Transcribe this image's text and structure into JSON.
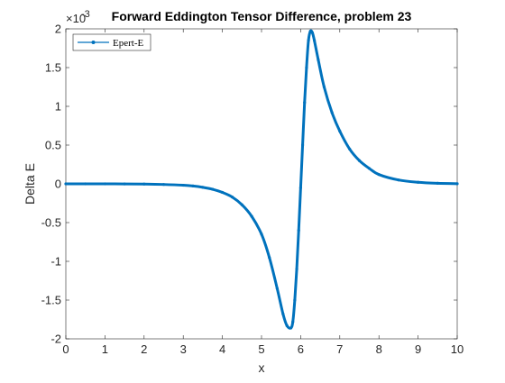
{
  "chart_data": {
    "type": "line",
    "title": "Forward Eddington Tensor Difference, problem 23",
    "xlabel": "x",
    "ylabel": "Delta E",
    "y_exponent_label": "×10",
    "y_exponent_power": "-3",
    "xlim": [
      0,
      10
    ],
    "ylim": [
      -0.002,
      0.002
    ],
    "x_ticks": [
      0,
      1,
      2,
      3,
      4,
      5,
      6,
      7,
      8,
      9,
      10
    ],
    "x_tick_labels": [
      "0",
      "1",
      "2",
      "3",
      "4",
      "5",
      "6",
      "7",
      "8",
      "9",
      "10"
    ],
    "y_ticks": [
      -0.002,
      -0.0015,
      -0.001,
      -0.0005,
      0,
      0.0005,
      0.001,
      0.0015,
      0.002
    ],
    "y_tick_labels": [
      "-2",
      "-1.5",
      "-1",
      "-0.5",
      "0",
      "0.5",
      "1",
      "1.5",
      "2"
    ],
    "grid": false,
    "legend_position": "top-left",
    "series": [
      {
        "name": "Epert-E",
        "color": "#0072BD",
        "marker": "dot",
        "x": [
          0,
          0.5,
          1,
          1.5,
          2,
          2.5,
          3,
          3.25,
          3.5,
          3.75,
          4,
          4.25,
          4.5,
          4.75,
          5,
          5.2,
          5.4,
          5.55,
          5.65,
          5.75,
          5.8,
          5.85,
          5.9,
          5.95,
          6.0,
          6.05,
          6.1,
          6.15,
          6.2,
          6.25,
          6.3,
          6.35,
          6.45,
          6.6,
          6.8,
          7.0,
          7.25,
          7.5,
          7.75,
          8.0,
          8.5,
          9.0,
          9.5,
          10
        ],
        "y": [
          0.0,
          0.0,
          0.0,
          -1e-06,
          -3e-06,
          -8e-06,
          -1.8e-05,
          -2.8e-05,
          -4.5e-05,
          -7e-05,
          -0.00011,
          -0.00017,
          -0.00027,
          -0.00042,
          -0.00065,
          -0.00095,
          -0.00135,
          -0.00168,
          -0.00183,
          -0.00186,
          -0.00178,
          -0.0015,
          -0.0011,
          -0.0006,
          -5e-05,
          0.0005,
          0.00105,
          0.0015,
          0.00185,
          0.00197,
          0.00195,
          0.00185,
          0.0016,
          0.00125,
          0.00092,
          0.00068,
          0.00045,
          0.0003,
          0.0002,
          0.00012,
          5e-05,
          2e-05,
          7e-06,
          2e-06
        ]
      }
    ]
  }
}
